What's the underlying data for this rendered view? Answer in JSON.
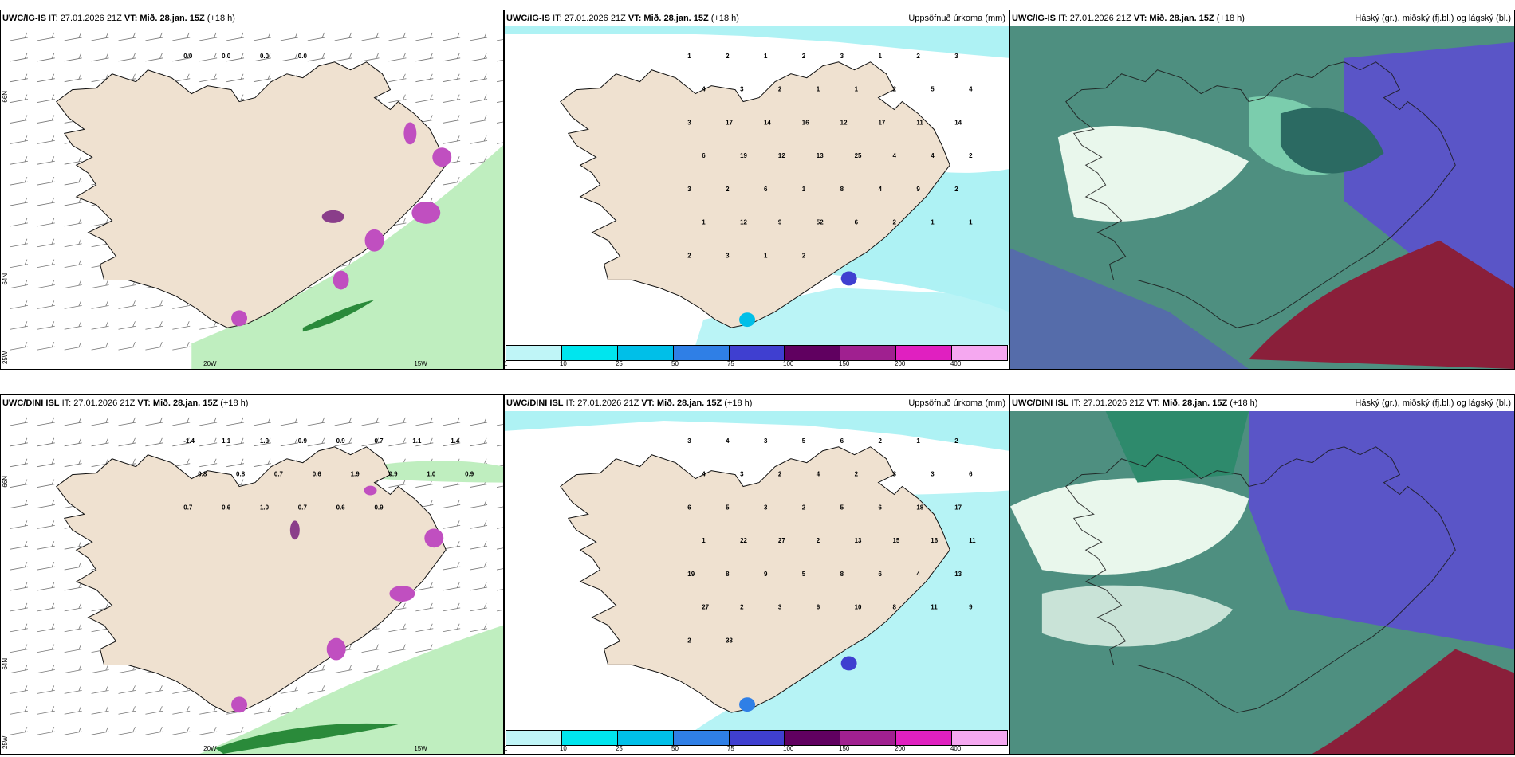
{
  "panels": [
    {
      "header": {
        "model": "UWC/IG-IS",
        "it": "IT: 27.01.2026 21Z",
        "vt_label": "VT:",
        "vt_value": "Mið. 28.jan. 15Z",
        "lead": "(+18 h)",
        "right": ""
      },
      "axis": {
        "lat1": "66N",
        "lat2": "64N",
        "lon1": "20W",
        "lon2": "15W",
        "lon0": "25W"
      },
      "numbers": [
        "0.0",
        "0.0",
        "0.0",
        "0.0"
      ]
    },
    {
      "header": {
        "model": "UWC/IG-IS",
        "it": "IT: 27.01.2026 21Z",
        "vt_label": "VT:",
        "vt_value": "Mið. 28.jan. 15Z",
        "lead": "(+18 h)",
        "right": "Uppsöfnuð úrkoma (mm)"
      },
      "numbers": [
        "1",
        "2",
        "1",
        "2",
        "3",
        "1",
        "2",
        "3",
        "4",
        "3",
        "2",
        "1",
        "1",
        "2",
        "5",
        "4",
        "3",
        "17",
        "14",
        "16",
        "12",
        "17",
        "11",
        "14",
        "6",
        "19",
        "12",
        "13",
        "25",
        "4",
        "4",
        "2",
        "3",
        "2",
        "6",
        "1",
        "8",
        "4",
        "9",
        "2",
        "1",
        "12",
        "9",
        "52",
        "6",
        "2",
        "1",
        "1",
        "2",
        "3",
        "1",
        "2"
      ]
    },
    {
      "header": {
        "model": "UWC/IG-IS",
        "it": "IT: 27.01.2026 21Z",
        "vt_label": "VT:",
        "vt_value": "Mið. 28.jan. 15Z",
        "lead": "(+18 h)",
        "right": "Háský (gr.), miðský (fj.bl.) og lágský (bl.)"
      }
    },
    {
      "header": {
        "model": "UWC/DINI ISL",
        "it": "IT: 27.01.2026 21Z",
        "vt_label": "VT:",
        "vt_value": "Mið. 28.jan. 15Z",
        "lead": "(+18 h)",
        "right": ""
      },
      "axis": {
        "lat1": "66N",
        "lat2": "64N",
        "lon1": "20W",
        "lon2": "15W",
        "lon0": "25W"
      },
      "numbers": [
        "-1.4",
        "1.1",
        "1.9",
        "0.9",
        "0.9",
        "0.7",
        "1.1",
        "1.4",
        "0.8",
        "0.8",
        "0.7",
        "0.6",
        "1.9",
        "0.9",
        "1.0",
        "0.9",
        "0.7",
        "0.6",
        "1.0",
        "0.7",
        "0.6",
        "0.9"
      ]
    },
    {
      "header": {
        "model": "UWC/DINI ISL",
        "it": "IT: 27.01.2026 21Z",
        "vt_label": "VT:",
        "vt_value": "Mið. 28.jan. 15Z",
        "lead": "(+18 h)",
        "right": "Uppsöfnuð úrkoma (mm)"
      },
      "numbers": [
        "3",
        "4",
        "3",
        "5",
        "6",
        "2",
        "1",
        "2",
        "4",
        "3",
        "2",
        "4",
        "2",
        "3",
        "3",
        "6",
        "6",
        "5",
        "3",
        "2",
        "5",
        "6",
        "18",
        "17",
        "1",
        "22",
        "27",
        "2",
        "13",
        "15",
        "16",
        "11",
        "19",
        "8",
        "9",
        "5",
        "8",
        "6",
        "4",
        "13",
        "27",
        "2",
        "3",
        "6",
        "10",
        "8",
        "11",
        "9",
        "2",
        "33"
      ]
    },
    {
      "header": {
        "model": "UWC/DINI ISL",
        "it": "IT: 27.01.2026 21Z",
        "vt_label": "VT:",
        "vt_value": "Mið. 28.jan. 15Z",
        "lead": "(+18 h)",
        "right": "Háský (gr.), miðský (fj.bl.) og lágský (bl.)"
      }
    }
  ],
  "colorbar": {
    "ticks": [
      "1",
      "10",
      "25",
      "50",
      "75",
      "100",
      "150",
      "200",
      "400"
    ],
    "colors": [
      "#bff5f7",
      "#00e5ee",
      "#00bfe8",
      "#2f7fe6",
      "#3f3fd0",
      "#600060",
      "#a02090",
      "#e020c0",
      "#f5a8f0"
    ]
  },
  "colors": {
    "land": "#efe1d0",
    "coast": "#111111",
    "precip_light": "#aef2f4",
    "wind_green": "#a9e8a9",
    "cloud_high": "#e6f5ea",
    "cloud_mid": "#5b9e8a",
    "cloud_low": "#5a55c7",
    "purple": "#c04fc0"
  }
}
